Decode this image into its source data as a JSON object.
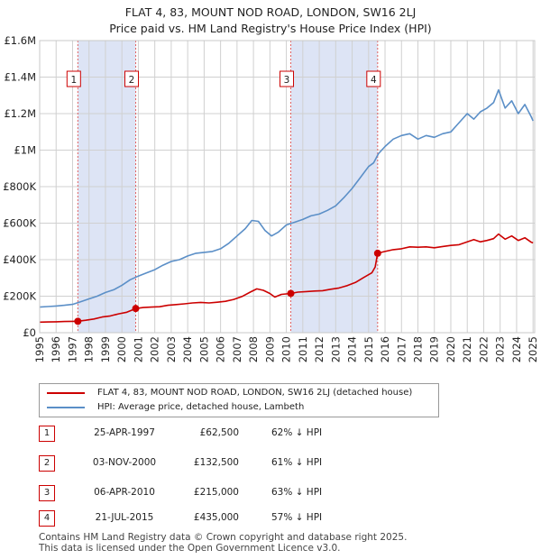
{
  "chart_data": {
    "type": "line",
    "title": "FLAT 4, 83, MOUNT NOD ROAD, LONDON, SW16 2LJ",
    "subtitle": "Price paid vs. HM Land Registry's House Price Index (HPI)",
    "xlim": [
      1995.0,
      2025.1
    ],
    "ylim": [
      0,
      1600000
    ],
    "x_ticks": [
      "1995",
      "1996",
      "1997",
      "1998",
      "1999",
      "2000",
      "2001",
      "2002",
      "2003",
      "2004",
      "2005",
      "2006",
      "2007",
      "2008",
      "2009",
      "2010",
      "2011",
      "2012",
      "2013",
      "2014",
      "2015",
      "2016",
      "2017",
      "2018",
      "2019",
      "2020",
      "2021",
      "2022",
      "2023",
      "2024",
      "2025"
    ],
    "y_ticks": [
      {
        "value": 0,
        "label": "£0"
      },
      {
        "value": 200000,
        "label": "£200K"
      },
      {
        "value": 400000,
        "label": "£400K"
      },
      {
        "value": 600000,
        "label": "£600K"
      },
      {
        "value": 800000,
        "label": "£800K"
      },
      {
        "value": 1000000,
        "label": "£1M"
      },
      {
        "value": 1200000,
        "label": "£1.2M"
      },
      {
        "value": 1400000,
        "label": "£1.4M"
      },
      {
        "value": 1600000,
        "label": "£1.6M"
      }
    ],
    "series": [
      {
        "name": "FLAT 4, 83, MOUNT NOD ROAD, LONDON, SW16 2LJ (detached house)",
        "color": "#cc0000",
        "points": [
          [
            1995.0,
            58000
          ],
          [
            1995.5,
            59000
          ],
          [
            1996.0,
            60000
          ],
          [
            1996.5,
            61000
          ],
          [
            1997.0,
            62000
          ],
          [
            1997.32,
            62500
          ],
          [
            1997.8,
            68000
          ],
          [
            1998.3,
            75000
          ],
          [
            1998.8,
            86000
          ],
          [
            1999.3,
            92000
          ],
          [
            1999.8,
            103000
          ],
          [
            2000.3,
            112000
          ],
          [
            2000.84,
            132500
          ],
          [
            2001.3,
            138000
          ],
          [
            2001.8,
            140000
          ],
          [
            2002.3,
            142000
          ],
          [
            2002.8,
            150000
          ],
          [
            2003.3,
            154000
          ],
          [
            2003.8,
            158000
          ],
          [
            2004.3,
            163000
          ],
          [
            2004.8,
            166000
          ],
          [
            2005.3,
            163000
          ],
          [
            2005.8,
            167000
          ],
          [
            2006.3,
            172000
          ],
          [
            2006.8,
            182000
          ],
          [
            2007.3,
            198000
          ],
          [
            2007.8,
            222000
          ],
          [
            2008.2,
            240000
          ],
          [
            2008.6,
            232000
          ],
          [
            2009.0,
            215000
          ],
          [
            2009.3,
            195000
          ],
          [
            2009.7,
            210000
          ],
          [
            2010.27,
            215000
          ],
          [
            2010.7,
            222000
          ],
          [
            2011.2,
            225000
          ],
          [
            2011.7,
            228000
          ],
          [
            2012.2,
            230000
          ],
          [
            2012.7,
            238000
          ],
          [
            2013.2,
            245000
          ],
          [
            2013.7,
            258000
          ],
          [
            2014.2,
            275000
          ],
          [
            2014.7,
            302000
          ],
          [
            2015.2,
            328000
          ],
          [
            2015.4,
            360000
          ],
          [
            2015.55,
            435000
          ],
          [
            2016.0,
            445000
          ],
          [
            2016.5,
            455000
          ],
          [
            2017.0,
            460000
          ],
          [
            2017.5,
            470000
          ],
          [
            2018.0,
            468000
          ],
          [
            2018.5,
            470000
          ],
          [
            2019.0,
            465000
          ],
          [
            2019.5,
            472000
          ],
          [
            2020.0,
            478000
          ],
          [
            2020.5,
            482000
          ],
          [
            2021.0,
            498000
          ],
          [
            2021.4,
            510000
          ],
          [
            2021.8,
            498000
          ],
          [
            2022.2,
            505000
          ],
          [
            2022.6,
            515000
          ],
          [
            2022.9,
            540000
          ],
          [
            2023.3,
            512000
          ],
          [
            2023.7,
            530000
          ],
          [
            2024.1,
            505000
          ],
          [
            2024.5,
            520000
          ],
          [
            2024.9,
            495000
          ],
          [
            2025.0,
            492000
          ]
        ]
      },
      {
        "name": "HPI: Average price, detached house, Lambeth",
        "color": "#5b8fc7",
        "points": [
          [
            1995.0,
            140000
          ],
          [
            1995.5,
            143000
          ],
          [
            1996.0,
            146000
          ],
          [
            1996.5,
            150000
          ],
          [
            1997.0,
            155000
          ],
          [
            1997.5,
            170000
          ],
          [
            1998.0,
            185000
          ],
          [
            1998.5,
            200000
          ],
          [
            1999.0,
            220000
          ],
          [
            1999.5,
            235000
          ],
          [
            2000.0,
            260000
          ],
          [
            2000.5,
            290000
          ],
          [
            2001.0,
            310000
          ],
          [
            2001.5,
            328000
          ],
          [
            2002.0,
            345000
          ],
          [
            2002.5,
            370000
          ],
          [
            2003.0,
            390000
          ],
          [
            2003.5,
            400000
          ],
          [
            2004.0,
            420000
          ],
          [
            2004.5,
            435000
          ],
          [
            2005.0,
            440000
          ],
          [
            2005.5,
            445000
          ],
          [
            2006.0,
            460000
          ],
          [
            2006.5,
            490000
          ],
          [
            2007.0,
            530000
          ],
          [
            2007.5,
            570000
          ],
          [
            2007.9,
            615000
          ],
          [
            2008.3,
            610000
          ],
          [
            2008.7,
            560000
          ],
          [
            2009.1,
            530000
          ],
          [
            2009.5,
            550000
          ],
          [
            2010.0,
            590000
          ],
          [
            2010.5,
            605000
          ],
          [
            2011.0,
            620000
          ],
          [
            2011.5,
            640000
          ],
          [
            2012.0,
            650000
          ],
          [
            2012.5,
            670000
          ],
          [
            2013.0,
            695000
          ],
          [
            2013.5,
            740000
          ],
          [
            2014.0,
            790000
          ],
          [
            2014.5,
            850000
          ],
          [
            2015.0,
            910000
          ],
          [
            2015.3,
            930000
          ],
          [
            2015.6,
            980000
          ],
          [
            2016.0,
            1020000
          ],
          [
            2016.5,
            1060000
          ],
          [
            2017.0,
            1080000
          ],
          [
            2017.5,
            1090000
          ],
          [
            2018.0,
            1060000
          ],
          [
            2018.5,
            1080000
          ],
          [
            2019.0,
            1070000
          ],
          [
            2019.5,
            1090000
          ],
          [
            2020.0,
            1100000
          ],
          [
            2020.5,
            1150000
          ],
          [
            2021.0,
            1200000
          ],
          [
            2021.4,
            1170000
          ],
          [
            2021.8,
            1210000
          ],
          [
            2022.2,
            1230000
          ],
          [
            2022.6,
            1260000
          ],
          [
            2022.9,
            1330000
          ],
          [
            2023.3,
            1230000
          ],
          [
            2023.7,
            1270000
          ],
          [
            2024.1,
            1200000
          ],
          [
            2024.5,
            1250000
          ],
          [
            2024.9,
            1180000
          ],
          [
            2025.0,
            1160000
          ]
        ]
      }
    ],
    "sales": [
      {
        "num": "1",
        "x": 1997.32,
        "price_value": 62500,
        "date": "25-APR-1997",
        "price": "£62,500",
        "hpi": "62% ↓ HPI"
      },
      {
        "num": "2",
        "x": 2000.84,
        "price_value": 132500,
        "date": "03-NOV-2000",
        "price": "£132,500",
        "hpi": "61% ↓ HPI"
      },
      {
        "num": "3",
        "x": 2010.27,
        "price_value": 215000,
        "date": "06-APR-2010",
        "price": "£215,000",
        "hpi": "63% ↓ HPI"
      },
      {
        "num": "4",
        "x": 2015.55,
        "price_value": 435000,
        "date": "21-JUL-2015",
        "price": "£435,000",
        "hpi": "57% ↓ HPI"
      }
    ],
    "shaded_ranges": [
      [
        1997.32,
        2000.84
      ],
      [
        2010.27,
        2015.55
      ]
    ],
    "shade_color": "#dde4f5",
    "grid": true
  },
  "legend": {
    "property_label": "FLAT 4, 83, MOUNT NOD ROAD, LONDON, SW16 2LJ (detached house)",
    "hpi_label": "HPI: Average price, detached house, Lambeth"
  },
  "footer": {
    "line1": "Contains HM Land Registry data © Crown copyright and database right 2025.",
    "line2": "This data is licensed under the Open Government Licence v3.0."
  }
}
